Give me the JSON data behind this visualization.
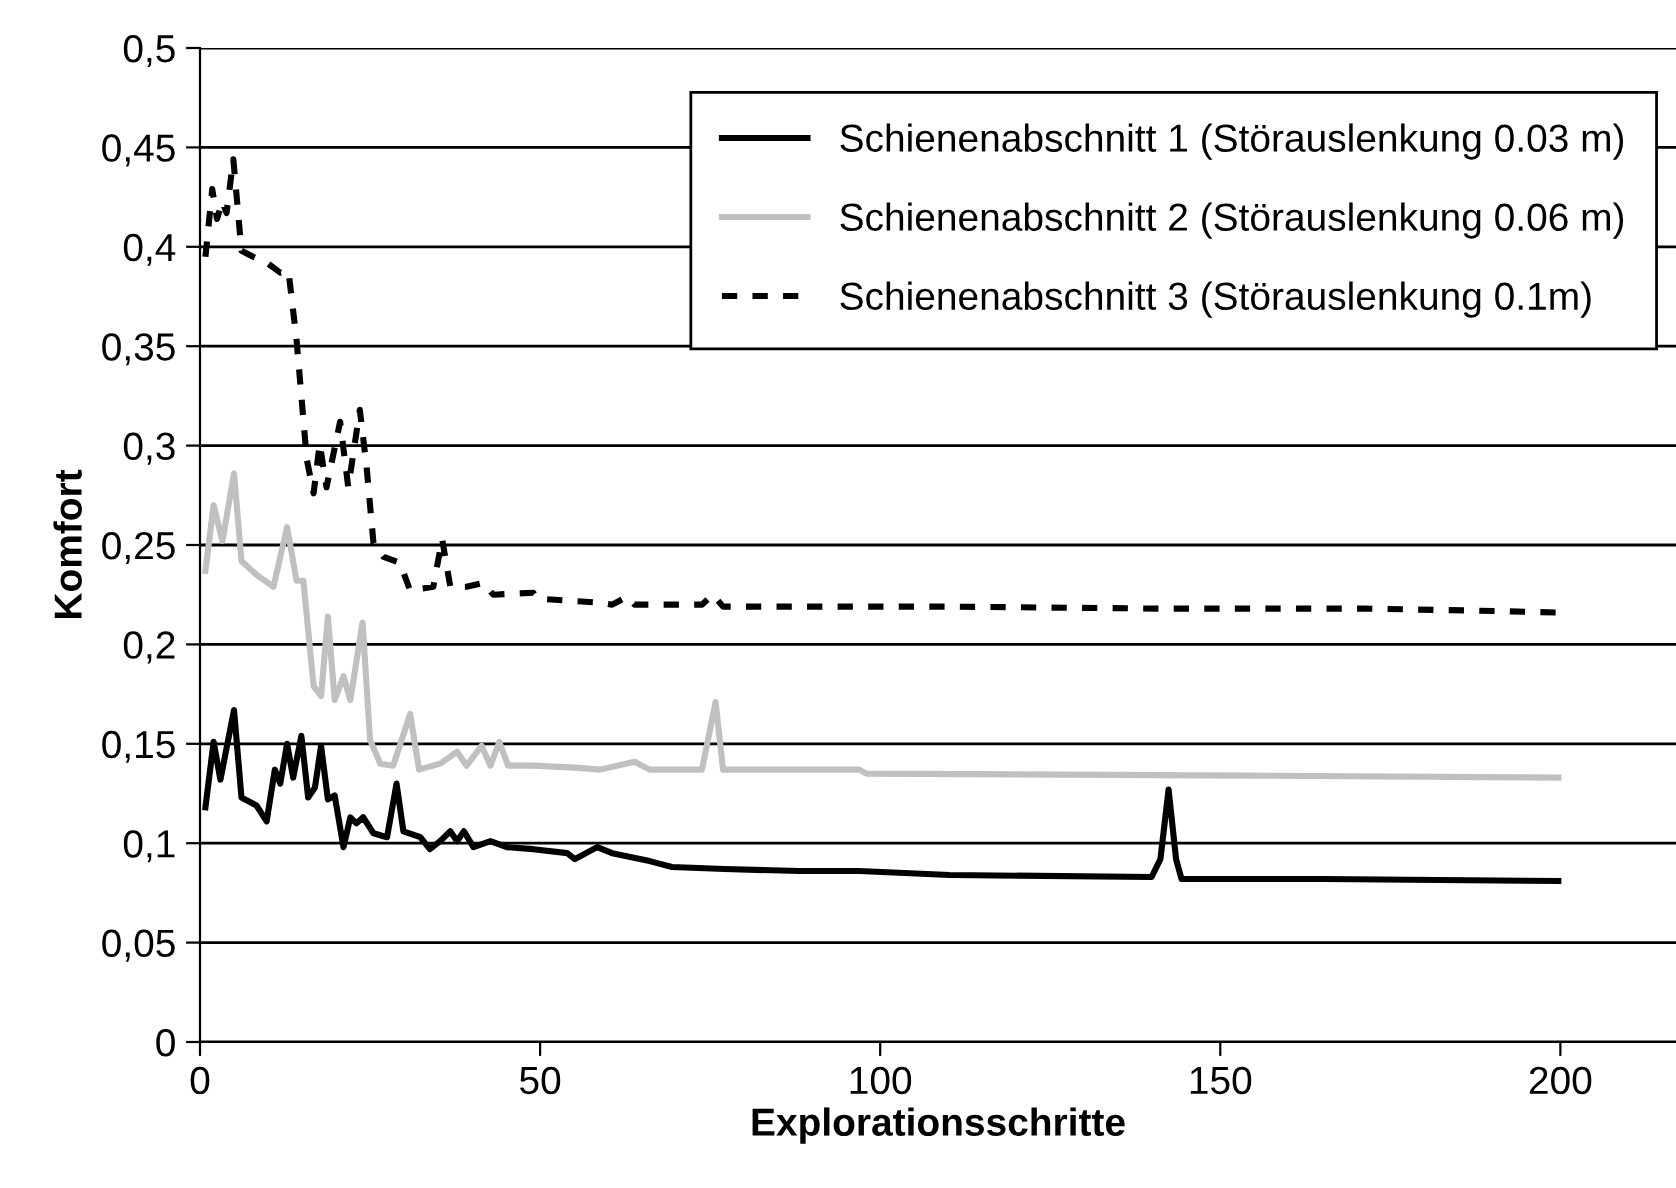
{
  "chart_data": {
    "type": "line",
    "xlabel": "Explorationsschritte",
    "ylabel": "Komfort",
    "xlim": [
      0,
      217
    ],
    "xticks": [
      0,
      50,
      100,
      150,
      200
    ],
    "ylim": [
      0,
      0.5
    ],
    "yticks": [
      0,
      {
        "value": 0.05,
        "label": "0,05"
      },
      {
        "value": 0.1,
        "label": "0,1"
      },
      {
        "value": 0.15,
        "label": "0,15"
      },
      {
        "value": 0.2,
        "label": "0,2"
      },
      {
        "value": 0.25,
        "label": "0,25"
      },
      {
        "value": 0.3,
        "label": "0,3"
      },
      {
        "value": 0.35,
        "label": "0,35"
      },
      {
        "value": 0.4,
        "label": "0,4"
      },
      {
        "value": 0.45,
        "label": "0,45"
      },
      {
        "value": 0.5,
        "label": "0,5"
      }
    ],
    "grid": "y",
    "legend": "top right",
    "series": [
      {
        "name": "Schienenabschnitt 1 (Störauslenkung 0.03 m)",
        "color": "#000000",
        "line_style": "solid",
        "x": [
          0.8,
          2,
          3,
          5,
          6.1,
          8.3,
          9.8,
          11,
          11.8,
          12.8,
          13.7,
          14.9,
          15.9,
          16.9,
          17.8,
          18.8,
          19.8,
          21.1,
          22.1,
          23,
          24,
          25.5,
          27.5,
          28.9,
          29.9,
          32.4,
          33.8,
          35.3,
          36.8,
          37.8,
          38.8,
          40.2,
          42.7,
          45.1,
          49,
          54,
          55.1,
          58.4,
          60.6,
          66.1,
          69.4,
          77.1,
          88.1,
          96.9,
          110.2,
          139.9,
          141.2,
          142.4,
          143.5,
          144.3,
          165.2,
          199.7
        ],
        "values": [
          0.118,
          0.151,
          0.132,
          0.167,
          0.123,
          0.119,
          0.111,
          0.137,
          0.13,
          0.15,
          0.133,
          0.154,
          0.123,
          0.128,
          0.149,
          0.122,
          0.124,
          0.098,
          0.113,
          0.11,
          0.113,
          0.105,
          0.103,
          0.13,
          0.106,
          0.103,
          0.097,
          0.101,
          0.106,
          0.101,
          0.106,
          0.098,
          0.101,
          0.098,
          0.097,
          0.095,
          0.092,
          0.098,
          0.095,
          0.091,
          0.088,
          0.087,
          0.086,
          0.086,
          0.084,
          0.083,
          0.092,
          0.127,
          0.092,
          0.082,
          0.082,
          0.081
        ]
      },
      {
        "name": "Schienenabschnitt 2 (Störauslenkung 0.06 m)",
        "color": "#c0c0c0",
        "line_style": "solid",
        "x": [
          0.8,
          2,
          3.3,
          5,
          6.1,
          8.3,
          10.8,
          12.8,
          14.2,
          15.2,
          16.7,
          17.8,
          18.8,
          19.8,
          21.1,
          22.1,
          23.9,
          25,
          26.5,
          28.4,
          30.9,
          32.2,
          35.3,
          37.8,
          39.2,
          41.4,
          42.7,
          44,
          45.3,
          49,
          55.1,
          58.8,
          63.9,
          66.1,
          73.8,
          75.8,
          76.9,
          96.9,
          98,
          154.2,
          199.7
        ],
        "values": [
          0.237,
          0.27,
          0.252,
          0.286,
          0.242,
          0.235,
          0.229,
          0.259,
          0.232,
          0.232,
          0.179,
          0.174,
          0.214,
          0.172,
          0.184,
          0.172,
          0.211,
          0.152,
          0.14,
          0.139,
          0.165,
          0.137,
          0.14,
          0.146,
          0.139,
          0.149,
          0.139,
          0.151,
          0.139,
          0.139,
          0.138,
          0.137,
          0.141,
          0.137,
          0.137,
          0.171,
          0.137,
          0.137,
          0.135,
          0.134,
          0.133
        ]
      },
      {
        "name": "Schienenabschnitt 3 (Störauslenkung 0.1m)",
        "color": "#000000",
        "line_style": "dashed",
        "x": [
          0.8,
          1.8,
          2.5,
          3.3,
          3.9,
          4.9,
          6.1,
          7.8,
          9.8,
          11.8,
          13,
          14.2,
          15.7,
          16.7,
          17.6,
          18.6,
          20.6,
          21.8,
          23.5,
          24.5,
          25.5,
          27,
          29.4,
          30.9,
          34.3,
          35.6,
          36.8,
          39.2,
          41.7,
          43.1,
          49,
          49.6,
          58.8,
          60.6,
          62.8,
          63.9,
          73.8,
          75.4,
          76.9,
          110.2,
          141.2,
          171,
          187.6,
          199.7
        ],
        "values": [
          0.395,
          0.429,
          0.414,
          0.423,
          0.417,
          0.444,
          0.398,
          0.395,
          0.392,
          0.387,
          0.388,
          0.353,
          0.293,
          0.276,
          0.301,
          0.279,
          0.312,
          0.279,
          0.318,
          0.289,
          0.251,
          0.244,
          0.241,
          0.227,
          0.229,
          0.253,
          0.229,
          0.229,
          0.231,
          0.225,
          0.226,
          0.223,
          0.221,
          0.22,
          0.224,
          0.22,
          0.22,
          0.225,
          0.219,
          0.219,
          0.218,
          0.218,
          0.217,
          0.216
        ]
      }
    ]
  }
}
